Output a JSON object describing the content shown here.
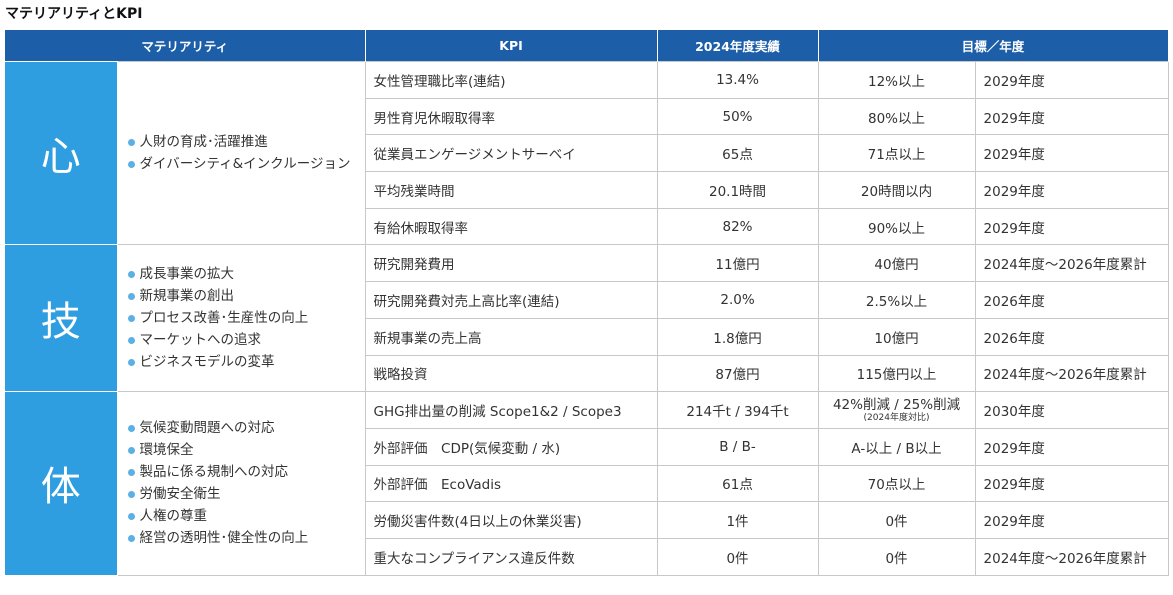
{
  "title": "マテリアリティとKPI",
  "header": {
    "materiality": "マテリアリティ",
    "kpi": "KPI",
    "actual": "2024年度実績",
    "target": "目標／年度"
  },
  "groups": [
    {
      "label": "心",
      "items": [
        "人財の育成･活躍推進",
        "ダイバーシティ&インクルージョン"
      ],
      "rows": [
        {
          "kpi": "女性管理職比率(連結)",
          "actual": "13.4%",
          "target": "12%以上",
          "year": "2029年度"
        },
        {
          "kpi": "男性育児休暇取得率",
          "actual": "50%",
          "target": "80%以上",
          "year": "2029年度"
        },
        {
          "kpi": "従業員エンゲージメントサーベイ",
          "actual": "65点",
          "target": "71点以上",
          "year": "2029年度"
        },
        {
          "kpi": "平均残業時間",
          "actual": "20.1時間",
          "target": "20時間以内",
          "year": "2029年度"
        },
        {
          "kpi": "有給休暇取得率",
          "actual": "82%",
          "target": "90%以上",
          "year": "2029年度"
        }
      ]
    },
    {
      "label": "技",
      "items": [
        "成長事業の拡大",
        "新規事業の創出",
        "プロセス改善･生産性の向上",
        "マーケットへの追求",
        "ビジネスモデルの変革"
      ],
      "rows": [
        {
          "kpi": "研究開発費用",
          "actual": "11億円",
          "target": "40億円",
          "year": "2024年度～2026年度累計"
        },
        {
          "kpi": "研究開発費対売上高比率(連結)",
          "actual": "2.0%",
          "target": "2.5%以上",
          "year": "2026年度"
        },
        {
          "kpi": "新規事業の売上高",
          "actual": "1.8億円",
          "target": "10億円",
          "year": "2026年度"
        },
        {
          "kpi": "戦略投資",
          "actual": "87億円",
          "target": "115億円以上",
          "year": "2024年度～2026年度累計"
        }
      ]
    },
    {
      "label": "体",
      "items": [
        "気候変動問題への対応",
        "環境保全",
        "製品に係る規制への対応",
        "労働安全衛生",
        "人権の尊重",
        "経営の透明性･健全性の向上"
      ],
      "rows": [
        {
          "kpi": "GHG排出量の削減 Scope1&2 / Scope3",
          "actual": "214千t / 394千t",
          "target": "42%削減 / 25%削減",
          "target_note": "(2024年度対比)",
          "year": "2030年度"
        },
        {
          "kpi": "外部評価　CDP(気候変動 / 水)",
          "actual": "B / B-",
          "target": "A-以上 / B以上",
          "year": "2029年度"
        },
        {
          "kpi": "外部評価　EcoVadis",
          "actual": "61点",
          "target": "70点以上",
          "year": "2029年度"
        },
        {
          "kpi": "労働災害件数(4日以上の休業災害)",
          "actual": "1件",
          "target": "0件",
          "year": "2029年度"
        },
        {
          "kpi": "重大なコンプライアンス違反件数",
          "actual": "0件",
          "target": "0件",
          "year": "2024年度～2026年度累計"
        }
      ]
    }
  ]
}
